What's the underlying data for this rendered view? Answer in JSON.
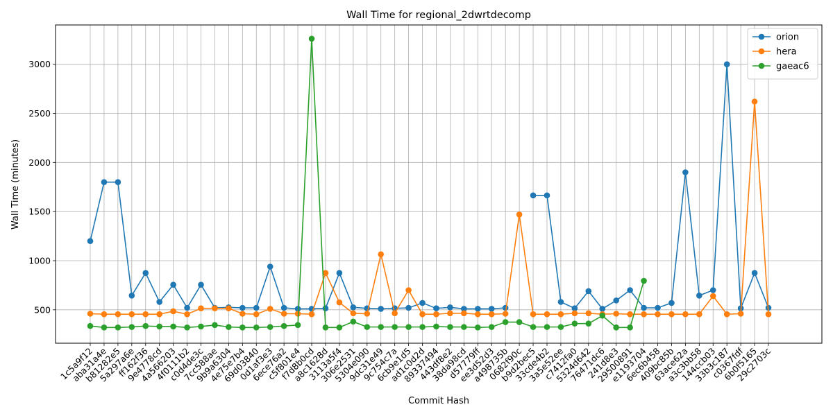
{
  "chart_data": {
    "type": "line",
    "title": "Wall Time for regional_2dwrtdecomp",
    "xlabel": "Commit Hash",
    "ylabel": "Wall Time (minutes)",
    "ylim": [
      160,
      3400
    ],
    "yticks": [
      500,
      1000,
      1500,
      2000,
      2500,
      3000
    ],
    "grid": true,
    "legend_position": "top-right",
    "categories": [
      "1c5a9f12",
      "aba31a4e",
      "b81282e5",
      "5a297a6e",
      "ff162f36",
      "9e4778cd",
      "4a566203",
      "4f0111b2",
      "c0d4de3c",
      "7cc588ae",
      "9b9a6304",
      "4e75e7b4",
      "69d03840",
      "0d1af3e3",
      "6ece76a2",
      "c5f801e4",
      "f7d8b0cd",
      "a8c1628d",
      "3113a5f4",
      "306e2531",
      "5304e090",
      "9dc31e49",
      "9c754c7a",
      "6cb9e1d5",
      "ad1c0d2d",
      "89337494",
      "443df8e2",
      "38da98cd",
      "d57779ff",
      "ee3d52d3",
      "a498735b",
      "0682f90c",
      "b9d2bec5",
      "33cde4b2",
      "3a5e52ee",
      "c7412fa0",
      "5324d642",
      "76471dc6",
      "241d8e3",
      "29500891",
      "e1193704",
      "6ec6b458",
      "409bc85b",
      "63ace62a",
      "a3c3bb58",
      "144ccb03",
      "33b3c187",
      "c0367fdf",
      "6b0f5165",
      "29c2703c"
    ],
    "series": [
      {
        "name": "orion",
        "color": "#1f77b4",
        "values": [
          1200,
          1800,
          1800,
          645,
          875,
          580,
          755,
          520,
          755,
          520,
          525,
          520,
          520,
          940,
          520,
          510,
          510,
          515,
          875,
          525,
          515,
          510,
          515,
          520,
          570,
          515,
          525,
          510,
          510,
          510,
          520,
          null,
          1665,
          1665,
          580,
          515,
          690,
          510,
          595,
          700,
          520,
          520,
          570,
          1900,
          645,
          700,
          3000,
          515,
          875,
          520
        ]
      },
      {
        "name": "hera",
        "color": "#ff7f0e",
        "values": [
          460,
          455,
          455,
          455,
          455,
          455,
          485,
          455,
          515,
          515,
          515,
          460,
          455,
          510,
          460,
          460,
          455,
          875,
          575,
          465,
          460,
          1065,
          465,
          700,
          455,
          455,
          465,
          465,
          455,
          455,
          460,
          1470,
          455,
          455,
          455,
          465,
          465,
          455,
          460,
          455,
          455,
          455,
          455,
          455,
          455,
          640,
          455,
          460,
          2620,
          455
        ]
      },
      {
        "name": "gaeac6",
        "color": "#2ca02c",
        "values": [
          335,
          320,
          320,
          325,
          335,
          330,
          330,
          320,
          330,
          345,
          325,
          320,
          320,
          325,
          335,
          345,
          3260,
          320,
          320,
          380,
          325,
          325,
          325,
          325,
          325,
          330,
          325,
          325,
          320,
          325,
          375,
          375,
          325,
          325,
          325,
          360,
          360,
          440,
          320,
          320,
          795,
          null,
          null,
          null,
          null,
          null,
          null,
          null,
          null,
          null
        ]
      }
    ]
  }
}
